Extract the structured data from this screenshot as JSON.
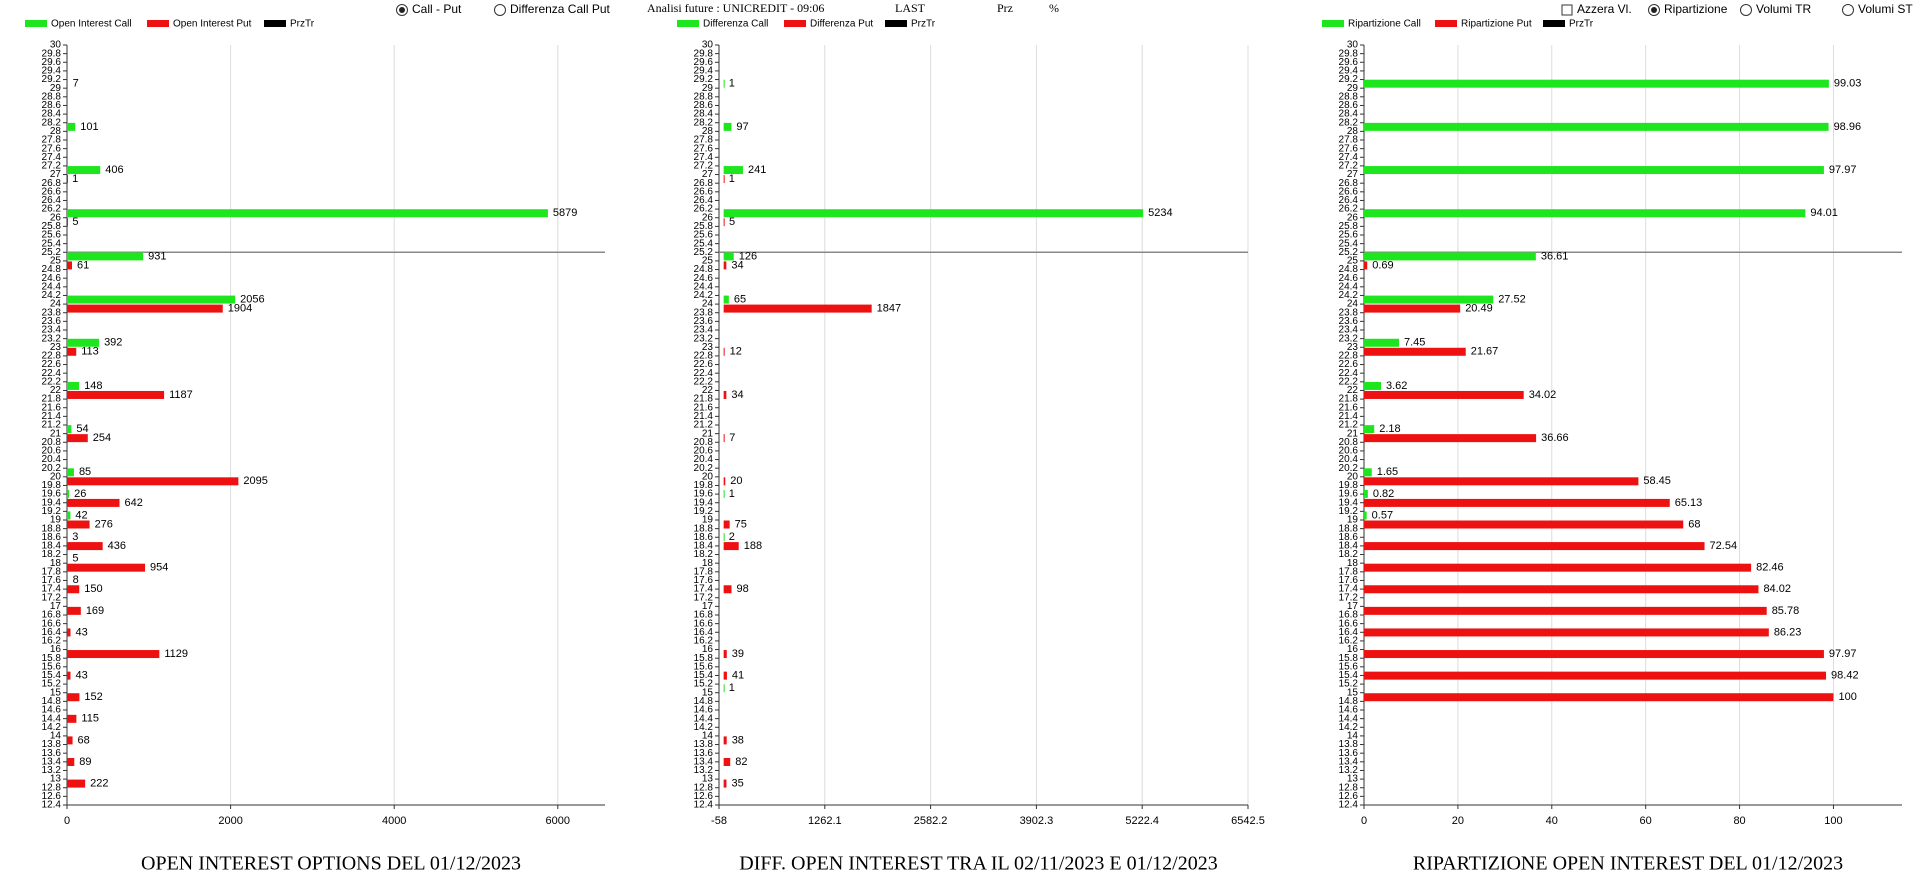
{
  "header": {
    "controls": [
      {
        "label": "Call - Put",
        "kind": "radio",
        "checked": true
      },
      {
        "label": "Differenza Call Put",
        "kind": "radio",
        "checked": false
      },
      {
        "label": "Azzera Vl.",
        "kind": "checkbox",
        "checked": false
      },
      {
        "label": "Ripartizione",
        "kind": "radio",
        "checked": true
      },
      {
        "label": "Volumi TR",
        "kind": "radio",
        "checked": false
      },
      {
        "label": "Volumi ST",
        "kind": "radio",
        "checked": false
      }
    ],
    "info": [
      "Analisi future : UNICREDIT - 09:06",
      "LAST",
      "Prz",
      "%"
    ]
  },
  "chart_data": [
    {
      "type": "hbar",
      "title": "OPEN INTEREST OPTIONS DEL 01/12/2023",
      "y": [
        29,
        28,
        27,
        26,
        25,
        24,
        23,
        22,
        21,
        20,
        19.5,
        19,
        18.5,
        18,
        17.5,
        17,
        16.5,
        16,
        15.5,
        15,
        14.5,
        14,
        13.5,
        13
      ],
      "series": [
        {
          "name": "Open Interest Call",
          "color": "#1ee61e",
          "values": [
            7,
            101,
            406,
            5879,
            931,
            2056,
            392,
            148,
            54,
            85,
            26,
            42,
            3,
            5,
            8,
            null,
            null,
            null,
            null,
            null,
            null,
            null,
            null,
            null
          ]
        },
        {
          "name": "Open Interest Put",
          "color": "#ee1111",
          "values": [
            null,
            null,
            1,
            5,
            61,
            1904,
            113,
            1187,
            254,
            2095,
            642,
            276,
            436,
            954,
            150,
            169,
            43,
            1129,
            43,
            152,
            115,
            68,
            89,
            222
          ]
        },
        {
          "name": "PrzTr",
          "color": "#000000",
          "values": [
            null,
            null,
            null,
            null,
            null,
            null,
            null,
            null,
            null,
            null,
            null,
            null,
            null,
            null,
            null,
            null,
            null,
            null,
            null,
            null,
            null,
            null,
            null,
            null
          ]
        }
      ],
      "xlim": [
        0,
        6577
      ],
      "xticks": [
        0,
        2000,
        4000,
        6000
      ],
      "ylim": [
        12.4,
        30
      ],
      "yticks": [
        12.4,
        12.6,
        12.8,
        13,
        13.2,
        13.4,
        13.6,
        13.8,
        14,
        14.2,
        14.4,
        14.6,
        14.8,
        15,
        15.2,
        15.4,
        15.6,
        15.8,
        16,
        16.2,
        16.4,
        16.6,
        16.8,
        17,
        17.2,
        17.4,
        17.6,
        17.8,
        18,
        18.2,
        18.4,
        18.6,
        18.8,
        19,
        19.2,
        19.4,
        19.6,
        19.8,
        20,
        20.2,
        20.4,
        20.6,
        20.8,
        21,
        21.2,
        21.4,
        21.6,
        21.8,
        22,
        22.2,
        22.4,
        22.6,
        22.8,
        23,
        23.2,
        23.4,
        23.6,
        23.8,
        24,
        24.2,
        24.4,
        24.6,
        24.8,
        25,
        25.2,
        25.4,
        25.6,
        25.8,
        26,
        26.2,
        26.4,
        26.6,
        26.8,
        27,
        27.2,
        27.4,
        27.6,
        27.8,
        28,
        28.2,
        28.4,
        28.6,
        28.8,
        29,
        29.2,
        29.4,
        29.6,
        29.8,
        30
      ],
      "hline": 25.2,
      "grid": true
    },
    {
      "type": "hbar",
      "title": "DIFF. OPEN INTEREST TRA IL 02/11/2023 E 01/12/2023",
      "y": [
        29,
        28,
        27,
        26,
        25,
        24,
        23,
        22,
        21,
        20,
        19.5,
        19,
        18.5,
        18,
        17.5,
        17,
        16.5,
        16,
        15.5,
        15,
        14.5,
        14,
        13.5,
        13
      ],
      "series": [
        {
          "name": "Differenza Call",
          "color": "#1ee61e",
          "values": [
            1,
            97,
            241,
            5234,
            126,
            65,
            null,
            null,
            null,
            null,
            1,
            null,
            2,
            null,
            null,
            null,
            null,
            null,
            null,
            1,
            null,
            null,
            null,
            null
          ]
        },
        {
          "name": "Differenza Put",
          "color": "#ee1111",
          "values": [
            null,
            null,
            1,
            5,
            34,
            1847,
            12,
            34,
            7,
            20,
            null,
            75,
            188,
            null,
            98,
            null,
            null,
            39,
            41,
            null,
            null,
            38,
            82,
            35
          ]
        },
        {
          "name": "PrzTr",
          "color": "#000000",
          "values": [
            null,
            null,
            null,
            null,
            null,
            null,
            null,
            null,
            null,
            null,
            null,
            null,
            null,
            null,
            null,
            null,
            null,
            null,
            null,
            null,
            null,
            null,
            null,
            null
          ]
        }
      ],
      "xlim": [
        -58,
        6542.5
      ],
      "xticks": [
        -58,
        1262.1,
        2582.2,
        3902.3,
        5222.4,
        6542.5
      ],
      "ylim": [
        12.4,
        30
      ],
      "yticks": [
        12.4,
        12.6,
        12.8,
        13,
        13.2,
        13.4,
        13.6,
        13.8,
        14,
        14.2,
        14.4,
        14.6,
        14.8,
        15,
        15.2,
        15.4,
        15.6,
        15.8,
        16,
        16.2,
        16.4,
        16.6,
        16.8,
        17,
        17.2,
        17.4,
        17.6,
        17.8,
        18,
        18.2,
        18.4,
        18.6,
        18.8,
        19,
        19.2,
        19.4,
        19.6,
        19.8,
        20,
        20.2,
        20.4,
        20.6,
        20.8,
        21,
        21.2,
        21.4,
        21.6,
        21.8,
        22,
        22.2,
        22.4,
        22.6,
        22.8,
        23,
        23.2,
        23.4,
        23.6,
        23.8,
        24,
        24.2,
        24.4,
        24.6,
        24.8,
        25,
        25.2,
        25.4,
        25.6,
        25.8,
        26,
        26.2,
        26.4,
        26.6,
        26.8,
        27,
        27.2,
        27.4,
        27.6,
        27.8,
        28,
        28.2,
        28.4,
        28.6,
        28.8,
        29,
        29.2,
        29.4,
        29.6,
        29.8,
        30
      ],
      "hline": 25.2,
      "grid": true
    },
    {
      "type": "hbar",
      "title": "RIPARTIZIONE OPEN INTEREST DEL 01/12/2023",
      "y": [
        29,
        28,
        27,
        26,
        25,
        24,
        23,
        22,
        21,
        20,
        19.5,
        19,
        18.5,
        18,
        17.5,
        17,
        16.5,
        16,
        15.5,
        15,
        14.5,
        14,
        13.5,
        13
      ],
      "series": [
        {
          "name": "Ripartizione Call",
          "color": "#1ee61e",
          "values": [
            99.03,
            98.96,
            97.97,
            94.01,
            36.61,
            27.52,
            7.45,
            3.62,
            2.18,
            1.65,
            0.82,
            0.57,
            null,
            null,
            null,
            null,
            null,
            null,
            null,
            null,
            null,
            null,
            null,
            null
          ]
        },
        {
          "name": "Ripartizione Put",
          "color": "#ee1111",
          "values": [
            null,
            null,
            null,
            null,
            0.69,
            20.49,
            21.67,
            34.02,
            36.66,
            58.45,
            65.13,
            68,
            72.54,
            82.46,
            84.02,
            85.78,
            86.23,
            97.97,
            98.42,
            100,
            null,
            null,
            null,
            null
          ]
        },
        {
          "name": "PrzTr",
          "color": "#000000",
          "values": [
            null,
            null,
            null,
            null,
            null,
            null,
            null,
            null,
            null,
            null,
            null,
            null,
            null,
            null,
            null,
            null,
            null,
            null,
            null,
            null,
            null,
            null,
            null,
            null
          ]
        }
      ],
      "xlim": [
        0,
        114.6
      ],
      "xticks": [
        0,
        20,
        40,
        60,
        80,
        100
      ],
      "ylim": [
        12.4,
        30
      ],
      "yticks": [
        12.4,
        12.6,
        12.8,
        13,
        13.2,
        13.4,
        13.6,
        13.8,
        14,
        14.2,
        14.4,
        14.6,
        14.8,
        15,
        15.2,
        15.4,
        15.6,
        15.8,
        16,
        16.2,
        16.4,
        16.6,
        16.8,
        17,
        17.2,
        17.4,
        17.6,
        17.8,
        18,
        18.2,
        18.4,
        18.6,
        18.8,
        19,
        19.2,
        19.4,
        19.6,
        19.8,
        20,
        20.2,
        20.4,
        20.6,
        20.8,
        21,
        21.2,
        21.4,
        21.6,
        21.8,
        22,
        22.2,
        22.4,
        22.6,
        22.8,
        23,
        23.2,
        23.4,
        23.6,
        23.8,
        24,
        24.2,
        24.4,
        24.6,
        24.8,
        25,
        25.2,
        25.4,
        25.6,
        25.8,
        26,
        26.2,
        26.4,
        26.6,
        26.8,
        27,
        27.2,
        27.4,
        27.6,
        27.8,
        28,
        28.2,
        28.4,
        28.6,
        28.8,
        29,
        29.2,
        29.4,
        29.6,
        29.8,
        30
      ],
      "hline": 25.2,
      "grid": true
    }
  ]
}
